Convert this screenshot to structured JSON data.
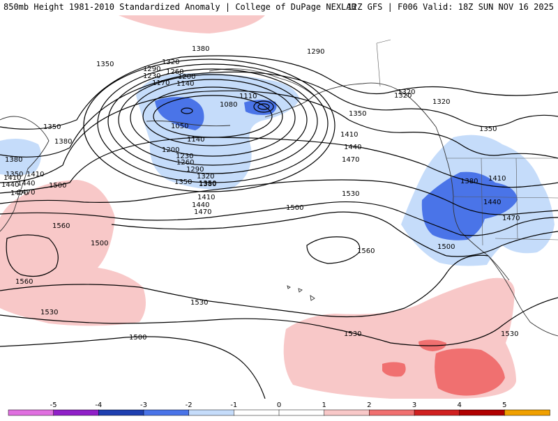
{
  "header": {
    "title": "850mb Height 1981-2010 Standardized Anomaly | College of DuPage NEXLAB",
    "run_info": "12Z GFS | F006 Valid: 18Z SUN NOV 16 2025"
  },
  "colors": {
    "neg5": "#e070e0",
    "neg4": "#9020c8",
    "neg3": "#1e3fb0",
    "neg2": "#4a74e8",
    "neg1": "#c5dcfa",
    "zero": "#ffffff",
    "pos1": "#f8c8c8",
    "pos2": "#f07070",
    "pos3": "#d02020",
    "pos4": "#b00000",
    "pos5": "#f0a000"
  },
  "colorbar": {
    "ticks": [
      "-5",
      "-4",
      "-3",
      "-2",
      "-1",
      "0",
      "1",
      "2",
      "3",
      "4",
      "5"
    ]
  },
  "contour_labels": [
    "1380",
    "1350",
    "1320",
    "1290",
    "1260",
    "1230",
    "1200",
    "1170",
    "1140",
    "1110",
    "1080",
    "1050",
    "1290",
    "1320",
    "1350",
    "1350",
    "1380",
    "1410",
    "1440",
    "1470",
    "1350",
    "1380",
    "1410",
    "1440",
    "1470",
    "1500",
    "1530",
    "1560",
    "1500",
    "1560",
    "1560",
    "1530",
    "1530",
    "1530",
    "1500",
    "1440",
    "1470",
    "1410",
    "1380",
    "1350",
    "1320",
    "1290",
    "1260",
    "1230",
    "1200",
    "1140",
    "1410",
    "1440",
    "1470",
    "1500",
    "1380",
    "1410",
    "1440",
    "1470",
    "1500",
    "1530",
    "1350",
    "1320",
    "1350",
    "1320"
  ]
}
